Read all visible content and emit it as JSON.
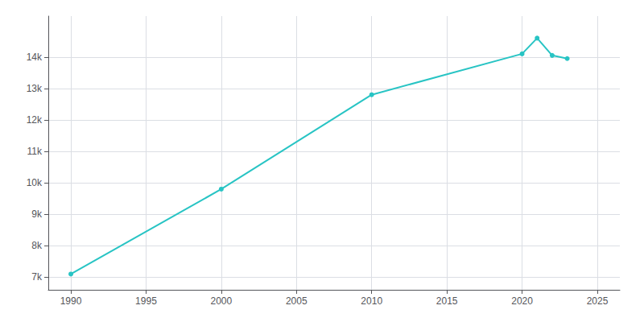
{
  "chart_data": {
    "type": "line",
    "x": [
      1990,
      2000,
      2010,
      2020,
      2021,
      2022,
      2023
    ],
    "values": [
      7100,
      9800,
      12800,
      14100,
      14600,
      14050,
      13950
    ],
    "color": "#28C4C4",
    "marker": "circle",
    "xlim": [
      1988.5,
      2026.5
    ],
    "ylim": [
      6600,
      15300
    ],
    "xticks": [
      1990,
      1995,
      2000,
      2005,
      2010,
      2015,
      2020,
      2025
    ],
    "yticks": [
      {
        "value": 7000,
        "label": "7k"
      },
      {
        "value": 8000,
        "label": "8k"
      },
      {
        "value": 9000,
        "label": "9k"
      },
      {
        "value": 10000,
        "label": "10k"
      },
      {
        "value": 11000,
        "label": "11k"
      },
      {
        "value": 12000,
        "label": "12k"
      },
      {
        "value": 13000,
        "label": "13k"
      },
      {
        "value": 14000,
        "label": "14k"
      }
    ],
    "grid": true
  }
}
